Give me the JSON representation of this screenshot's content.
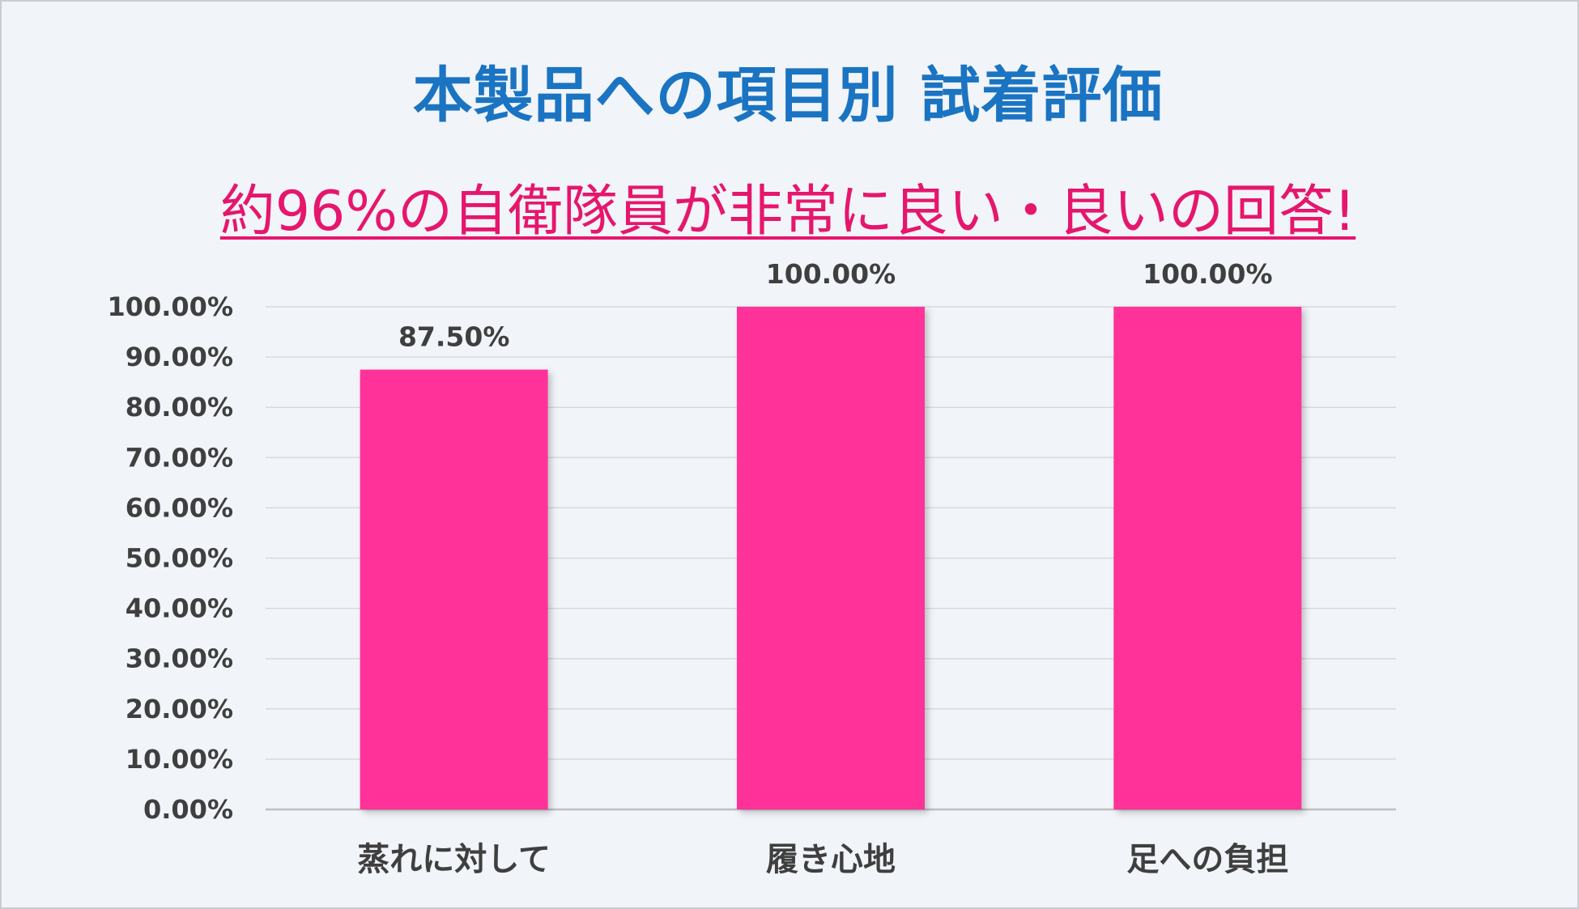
{
  "title": "本製品への項目別 試着評価",
  "subtitle": "約96%の自衛隊員が非常に良い・良いの回答!",
  "colors": {
    "background": "#f1f4f9",
    "title": "#1a74c2",
    "subtitle": "#e6166d",
    "bar": "#ff3399",
    "gridline": "#d9d9d9",
    "text": "#3f3f3f"
  },
  "chart_data": {
    "type": "bar",
    "title": "",
    "xlabel": "",
    "ylabel": "",
    "categories": [
      "蒸れに対して",
      "履き心地",
      "足への負担"
    ],
    "values": [
      87.5,
      100.0,
      100.0
    ],
    "data_labels": [
      "87.50%",
      "100.00%",
      "100.00%"
    ],
    "ylim": [
      0,
      100
    ],
    "y_ticks": [
      0,
      10,
      20,
      30,
      40,
      50,
      60,
      70,
      80,
      90,
      100
    ],
    "y_tick_labels": [
      "0.00%",
      "10.00%",
      "20.00%",
      "30.00%",
      "40.00%",
      "50.00%",
      "60.00%",
      "70.00%",
      "80.00%",
      "90.00%",
      "100.00%"
    ],
    "grid": true,
    "legend": "none"
  }
}
